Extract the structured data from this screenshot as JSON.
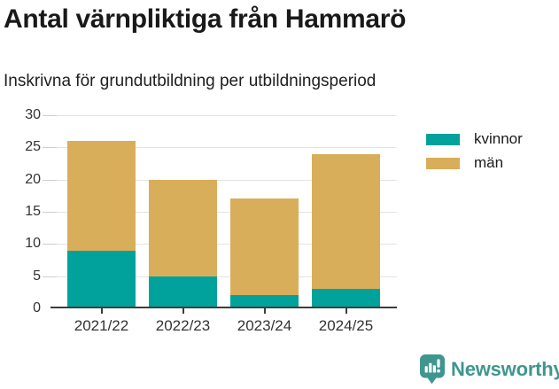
{
  "header": {
    "title": "Antal värnpliktiga från Hammarö",
    "subtitle": "Inskrivna för grundutbildning per utbildningsperiod"
  },
  "chart_data": {
    "type": "bar",
    "stacked": true,
    "title": "Antal värnpliktiga från Hammarö",
    "subtitle": "Inskrivna för grundutbildning per utbildningsperiod",
    "categories": [
      "2021/22",
      "2022/23",
      "2023/24",
      "2024/25"
    ],
    "series": [
      {
        "name": "kvinnor",
        "color": "#00a29b",
        "values": [
          9,
          5,
          2,
          3
        ]
      },
      {
        "name": "män",
        "color": "#d9ae5a",
        "values": [
          17,
          15,
          15,
          21
        ]
      }
    ],
    "totals": [
      26,
      20,
      17,
      24
    ],
    "xlabel": "",
    "ylabel": "",
    "ylim": [
      0,
      30
    ],
    "yticks": [
      0,
      5,
      10,
      15,
      20,
      25,
      30
    ],
    "grid": true,
    "legend_position": "right-top",
    "colors": {
      "axis_line": "#3d3d3d",
      "gridline": "#e4e4e4",
      "tick_label": "#333333"
    }
  },
  "footer": {
    "brand": "Newsworthy",
    "brand_color": "#3f968f",
    "logo_icon": "bar-chart-speech-bubble-icon"
  }
}
